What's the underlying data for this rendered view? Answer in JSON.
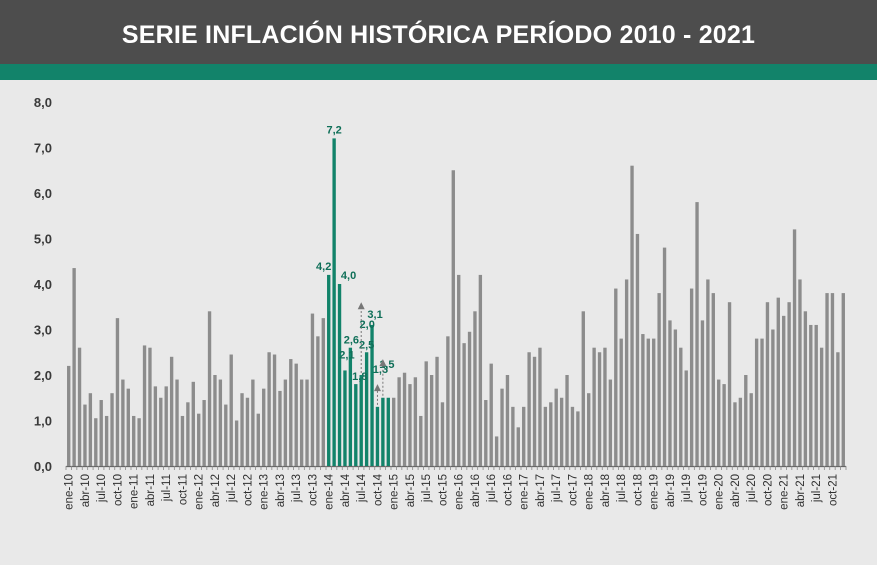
{
  "header": {
    "title": "SERIE INFLACIÓN HISTÓRICA PERÍODO 2010 - 2021"
  },
  "colors": {
    "header": "#4d4d4d",
    "band": "#12836a",
    "bar": "#8c8c8c",
    "highlight": "#12836a",
    "background": "#e9e9e9"
  },
  "chart_data": {
    "type": "bar",
    "title": "SERIE INFLACIÓN HISTÓRICA PERÍODO 2010 - 2021",
    "xlabel": "",
    "ylabel": "",
    "ylim": [
      0,
      8
    ],
    "yticks": [
      "0,0",
      "1,0",
      "2,0",
      "3,0",
      "4,0",
      "5,0",
      "6,0",
      "7,0",
      "8,0"
    ],
    "grid": false,
    "x_tick_labels": [
      "ene-10",
      "abr-10",
      "jul-10",
      "oct-10",
      "ene-11",
      "abr-11",
      "jul-11",
      "oct-11",
      "ene-12",
      "abr-12",
      "jul-12",
      "oct-12",
      "ene-13",
      "abr-13",
      "jul-13",
      "oct-13",
      "ene-14",
      "abr-14",
      "jul-14",
      "oct-14",
      "ene-15",
      "abr-15",
      "jul-15",
      "oct-15",
      "ene-16",
      "abr-16",
      "jul-16",
      "oct-16",
      "ene-17",
      "abr-17",
      "jul-17",
      "oct-17",
      "ene-18",
      "abr-18",
      "jul-18",
      "oct-18",
      "ene-19",
      "abr-19",
      "jul-19",
      "oct-19",
      "ene-20",
      "abr-20",
      "jul-20",
      "oct-20",
      "ene-21",
      "abr-21",
      "jul-21",
      "oct-21"
    ],
    "values": [
      2.2,
      4.35,
      2.6,
      1.35,
      1.6,
      1.05,
      1.45,
      1.1,
      1.6,
      3.25,
      1.9,
      1.7,
      1.1,
      1.05,
      2.65,
      2.6,
      1.75,
      1.5,
      1.75,
      2.4,
      1.9,
      1.1,
      1.4,
      1.85,
      1.15,
      1.45,
      3.4,
      2.0,
      1.9,
      1.35,
      2.45,
      1.0,
      1.6,
      1.5,
      1.9,
      1.15,
      1.7,
      2.5,
      2.45,
      1.65,
      1.9,
      2.35,
      2.25,
      1.9,
      1.9,
      3.35,
      2.85,
      3.25,
      4.2,
      7.2,
      4.0,
      2.1,
      2.6,
      1.8,
      2.0,
      2.5,
      3.1,
      1.3,
      1.5,
      1.5,
      1.5,
      1.95,
      2.05,
      1.8,
      1.95,
      1.1,
      2.3,
      2.0,
      2.4,
      1.4,
      2.85,
      6.5,
      4.2,
      2.7,
      2.95,
      3.4,
      4.2,
      1.45,
      2.25,
      0.65,
      1.7,
      2.0,
      1.3,
      0.85,
      1.3,
      2.5,
      2.4,
      2.6,
      1.3,
      1.4,
      1.7,
      1.5,
      2.0,
      1.3,
      1.2,
      3.4,
      1.6,
      2.6,
      2.5,
      2.6,
      1.9,
      3.9,
      2.8,
      4.1,
      6.6,
      5.1,
      2.9,
      2.8,
      2.8,
      3.8,
      4.8,
      3.2,
      3.0,
      2.6,
      2.1,
      3.9,
      5.8,
      3.2,
      4.1,
      3.8,
      1.9,
      1.8,
      3.6,
      1.4,
      1.5,
      2.0,
      1.6,
      2.8,
      2.8,
      3.6,
      3.0,
      3.7,
      3.3,
      3.6,
      5.2,
      4.1,
      3.4,
      3.1,
      3.1,
      2.6,
      3.8,
      3.8,
      2.5,
      3.8
    ],
    "highlight_range": [
      48,
      59
    ],
    "data_labels": [
      {
        "index": 48,
        "text": "4,2"
      },
      {
        "index": 49,
        "text": "7,2"
      },
      {
        "index": 50,
        "text": "4,0"
      },
      {
        "index": 51,
        "text": "2,1"
      },
      {
        "index": 52,
        "text": "2,6"
      },
      {
        "index": 53,
        "text": "1,8"
      },
      {
        "index": 54,
        "text": "2,0"
      },
      {
        "index": 55,
        "text": "2,5"
      },
      {
        "index": 56,
        "text": "3,1"
      },
      {
        "index": 57,
        "text": "1,3"
      },
      {
        "index": 58,
        "text": "1,5"
      }
    ]
  }
}
